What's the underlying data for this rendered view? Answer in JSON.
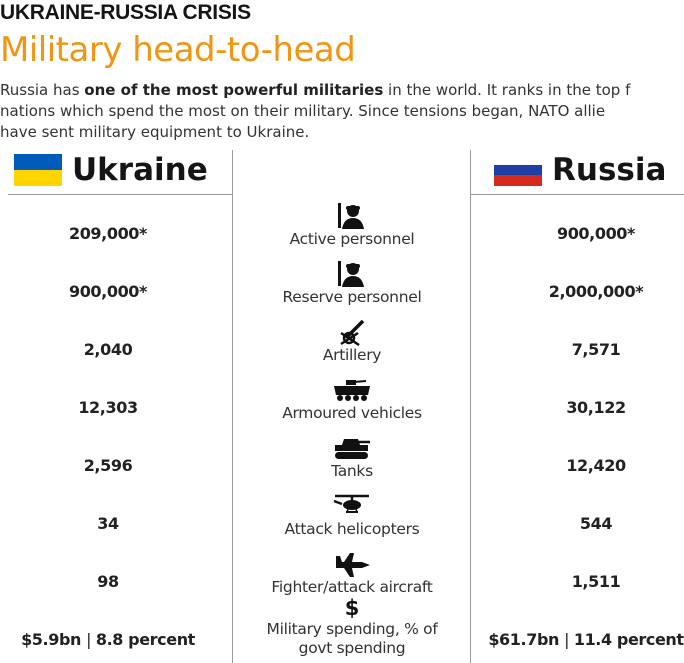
{
  "header": {
    "kicker": "UKRAINE-RUSSIA CRISIS",
    "title": "Military head-to-head",
    "intro": {
      "line1_pre": "Russia has ",
      "line1_bold": "one of the most powerful militaries",
      "line1_post": " in the world. It ranks in the top f",
      "line2": "nations which spend the most on their military. Since tensions began, NATO allie",
      "line3": "have sent military equipment to Ukraine."
    }
  },
  "countries": {
    "left": {
      "name": "Ukraine",
      "flag": [
        "#005bbb",
        "#ffd500"
      ]
    },
    "right": {
      "name": "Russia",
      "flag": [
        "#ffffff",
        "#1c3fa8",
        "#d52b1e"
      ]
    }
  },
  "rows": [
    {
      "icon": "soldier-icon",
      "label": "Active personnel",
      "ukraine": "209,000*",
      "russia": "900,000*"
    },
    {
      "icon": "soldier-icon",
      "label": "Reserve personnel",
      "ukraine": "900,000*",
      "russia": "2,000,000*"
    },
    {
      "icon": "artillery-icon",
      "label": "Artillery",
      "ukraine": "2,040",
      "russia": "7,571"
    },
    {
      "icon": "armoured-vehicle-icon",
      "label": "Armoured vehicles",
      "ukraine": "12,303",
      "russia": "30,122"
    },
    {
      "icon": "tank-icon",
      "label": "Tanks",
      "ukraine": "2,596",
      "russia": "12,420"
    },
    {
      "icon": "helicopter-icon",
      "label": "Attack helicopters",
      "ukraine": "34",
      "russia": "544"
    },
    {
      "icon": "fighter-jet-icon",
      "label": "Fighter/attack aircraft",
      "ukraine": "98",
      "russia": "1,511"
    },
    {
      "icon": "dollar-icon",
      "label": "Military spending, % of",
      "label2": "govt spending",
      "ukraine_amount": "$5.9bn",
      "ukraine_pct": "8.8 percent",
      "russia_amount": "$61.7bn",
      "russia_pct": "11.4 percent"
    }
  ]
}
